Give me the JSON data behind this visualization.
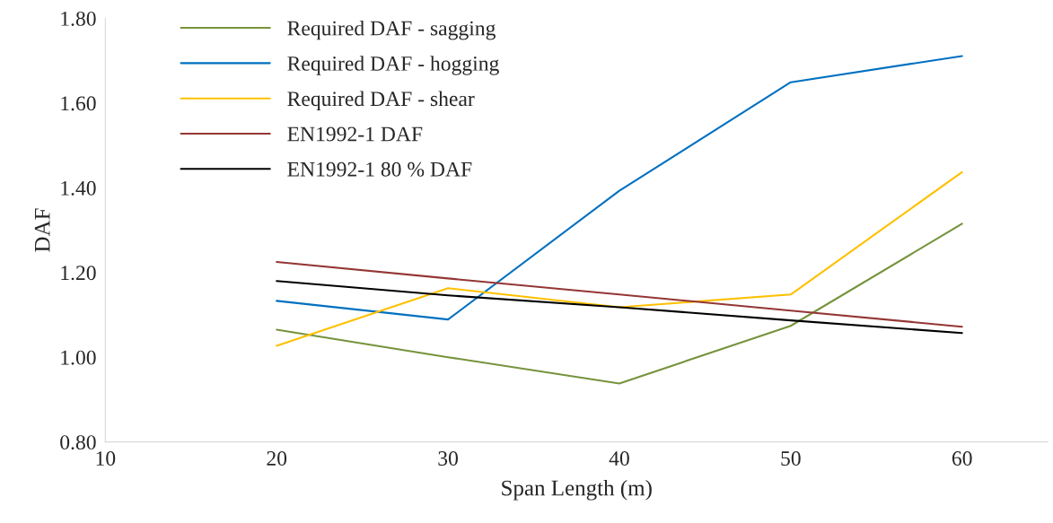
{
  "chart_data": {
    "type": "line",
    "xlabel": "Span Length (m)",
    "ylabel": "DAF",
    "x": [
      20,
      30,
      40,
      50,
      60
    ],
    "series": [
      {
        "name": "Required DAF - sagging",
        "color": "#77933c",
        "values": [
          1.065,
          1.0,
          0.938,
          1.074,
          1.315
        ]
      },
      {
        "name": "Required DAF - hogging",
        "color": "#0070c0",
        "values": [
          1.133,
          1.089,
          1.393,
          1.649,
          1.711
        ]
      },
      {
        "name": "Required DAF - shear",
        "color": "#ffc000",
        "values": [
          1.027,
          1.163,
          1.118,
          1.148,
          1.437
        ]
      },
      {
        "name": "EN1992-1 DAF",
        "color": "#943634",
        "values": [
          1.225,
          1.186,
          1.148,
          1.11,
          1.072
        ]
      },
      {
        "name": "EN1992-1 80 % DAF",
        "color": "#000000",
        "values": [
          1.18,
          1.146,
          1.118,
          1.087,
          1.057
        ]
      }
    ],
    "xlim": [
      10,
      65
    ],
    "xticks": [
      10,
      20,
      30,
      40,
      50,
      60
    ],
    "ylim": [
      0.8,
      1.8
    ],
    "yticks": [
      {
        "value": 0.8,
        "label": "0.80"
      },
      {
        "value": 1.0,
        "label": "1.00"
      },
      {
        "value": 1.2,
        "label": "1.20"
      },
      {
        "value": 1.4,
        "label": "1.40"
      },
      {
        "value": 1.6,
        "label": "1.60"
      },
      {
        "value": 1.8,
        "label": "1.80"
      }
    ],
    "grid": false,
    "legend": "top left",
    "marker": "none",
    "line_style": "solid"
  }
}
